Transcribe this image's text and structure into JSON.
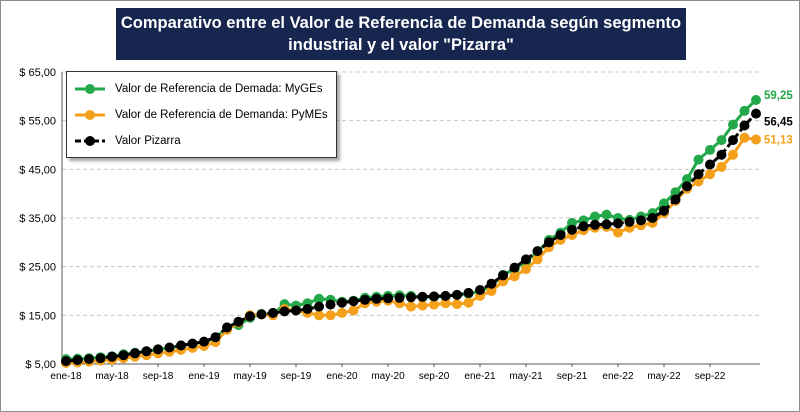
{
  "title_line1": "Comparativo entre el Valor de Referencia de Demanda según segmento",
  "title_line2": "industrial y el valor \"Pizarra\"",
  "chart_data": {
    "type": "line",
    "ylim": [
      5,
      65
    ],
    "y_ticks": [
      "$ 5,00",
      "$ 15,00",
      "$ 25,00",
      "$ 35,00",
      "$ 45,00",
      "$ 55,00",
      "$ 65,00"
    ],
    "x_ticks": [
      "ene-18",
      "may-18",
      "sep-18",
      "ene-19",
      "may-19",
      "sep-19",
      "ene-20",
      "may-20",
      "sep-20",
      "ene-21",
      "may-21",
      "sep-21",
      "ene-22",
      "may-22",
      "sep-22"
    ],
    "grid": "horizontal dashed",
    "legend_position": "top-left",
    "series": [
      {
        "name": "Valor de Referencia de Demada: MyGEs",
        "color": "#23a84a",
        "end_label": "59,25",
        "values": [
          6.0,
          6.1,
          6.2,
          6.4,
          6.6,
          7.0,
          7.3,
          7.6,
          8.0,
          8.3,
          8.8,
          9.2,
          9.5,
          10.3,
          12.5,
          13.0,
          14.5,
          15.3,
          15.2,
          17.3,
          17.0,
          17.5,
          18.4,
          18.2,
          17.8,
          18.0,
          18.6,
          18.8,
          19.0,
          19.1,
          19.0,
          18.7,
          18.8,
          18.9,
          19.2,
          19.4,
          20.0,
          21.0,
          23.3,
          24.5,
          26.0,
          28.0,
          30.5,
          32.0,
          34.0,
          34.5,
          35.3,
          35.7,
          35.0,
          34.6,
          35.3,
          36.0,
          38.0,
          40.3,
          43.0,
          47.0,
          49.0,
          51.0,
          54.2,
          57.0,
          59.25
        ]
      },
      {
        "name": "Valor de Referencia de Demanda: PyMEs",
        "color": "#f5a01a",
        "end_label": "51,13",
        "values": [
          5.2,
          5.3,
          5.5,
          5.7,
          5.9,
          6.2,
          6.5,
          6.8,
          7.2,
          7.5,
          7.9,
          8.3,
          8.7,
          9.5,
          12.0,
          13.5,
          15.0,
          15.2,
          15.0,
          16.3,
          16.0,
          15.5,
          15.0,
          15.0,
          15.5,
          16.0,
          17.5,
          17.8,
          18.0,
          17.5,
          16.8,
          17.0,
          17.2,
          17.5,
          17.3,
          17.6,
          19.0,
          20.0,
          22.0,
          23.0,
          24.5,
          26.5,
          29.0,
          30.5,
          31.5,
          32.5,
          33.0,
          33.2,
          32.0,
          33.0,
          33.5,
          34.0,
          36.0,
          38.5,
          41.0,
          42.5,
          44.0,
          45.5,
          48.0,
          51.5,
          51.13
        ]
      },
      {
        "name": "Valor Pizarra",
        "color": "#000000",
        "end_label": "56,45",
        "values": [
          5.6,
          5.8,
          6.0,
          6.2,
          6.5,
          6.8,
          7.2,
          7.6,
          8.0,
          8.4,
          8.8,
          9.2,
          9.6,
          10.5,
          12.5,
          13.7,
          14.8,
          15.2,
          15.5,
          15.8,
          16.0,
          16.3,
          16.8,
          17.2,
          17.6,
          17.9,
          18.2,
          18.4,
          18.5,
          18.6,
          18.7,
          18.8,
          18.9,
          19.0,
          19.2,
          19.6,
          20.2,
          21.5,
          23.2,
          24.8,
          26.5,
          28.2,
          30.0,
          31.5,
          32.6,
          33.3,
          33.6,
          33.7,
          33.9,
          34.2,
          34.5,
          35.0,
          36.5,
          38.8,
          41.5,
          44.0,
          46.0,
          48.0,
          51.0,
          54.0,
          56.45
        ]
      }
    ]
  }
}
